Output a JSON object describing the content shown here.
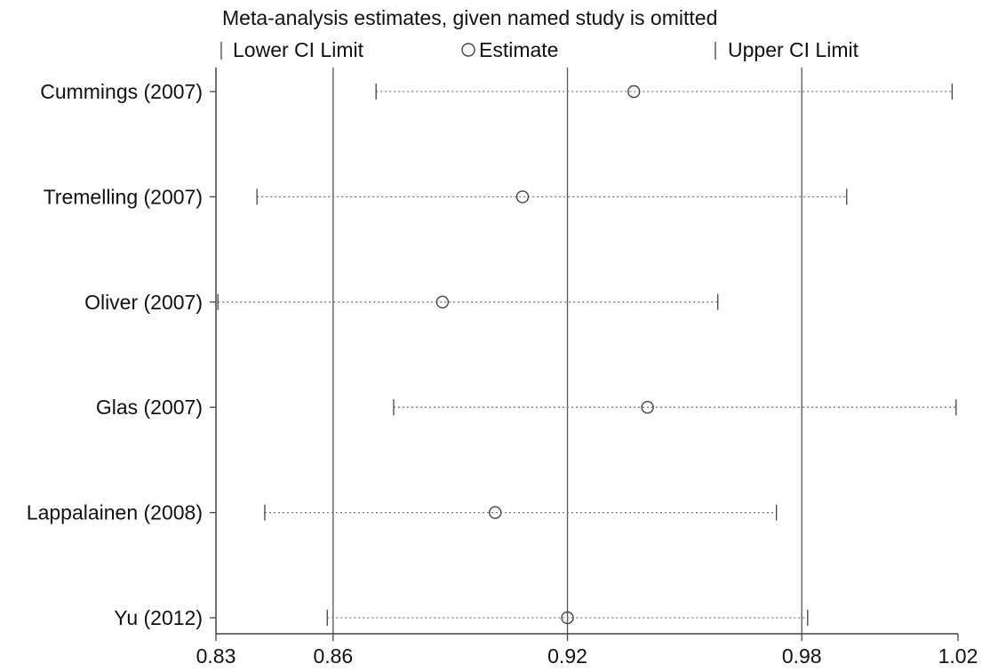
{
  "chart_data": {
    "type": "scatter",
    "title": "Meta-analysis estimates, given named study is omitted",
    "legend": {
      "placement": "top",
      "items": [
        {
          "name": "Lower CI Limit",
          "symbol": "bar"
        },
        {
          "name": "Estimate",
          "symbol": "circle"
        },
        {
          "name": "Upper CI Limit",
          "symbol": "bar"
        }
      ]
    },
    "studies": [
      {
        "name": "Cummings (2007)",
        "lower": 0.871,
        "estimate": 0.937,
        "upper": 1.0185
      },
      {
        "name": "Tremelling (2007)",
        "lower": 0.8405,
        "estimate": 0.9085,
        "upper": 0.9915
      },
      {
        "name": "Oliver (2007)",
        "lower": 0.8305,
        "estimate": 0.888,
        "upper": 0.9585
      },
      {
        "name": "Glas (2007)",
        "lower": 0.8755,
        "estimate": 0.9405,
        "upper": 1.0195
      },
      {
        "name": "Lappalainen (2008)",
        "lower": 0.8425,
        "estimate": 0.9015,
        "upper": 0.9735
      },
      {
        "name": "Yu (2012)",
        "lower": 0.8585,
        "estimate": 0.92,
        "upper": 0.9815
      }
    ],
    "reference_lines": [
      0.86,
      0.92,
      0.98
    ],
    "x_ticks": [
      {
        "value": 0.83,
        "label": "0.83"
      },
      {
        "value": 0.86,
        "label": "0.86"
      },
      {
        "value": 0.92,
        "label": "0.92"
      },
      {
        "value": 0.98,
        "label": "0.98"
      },
      {
        "value": 1.02,
        "label": "1.02"
      }
    ],
    "xlim": [
      0.83,
      1.02
    ],
    "grid": false
  }
}
